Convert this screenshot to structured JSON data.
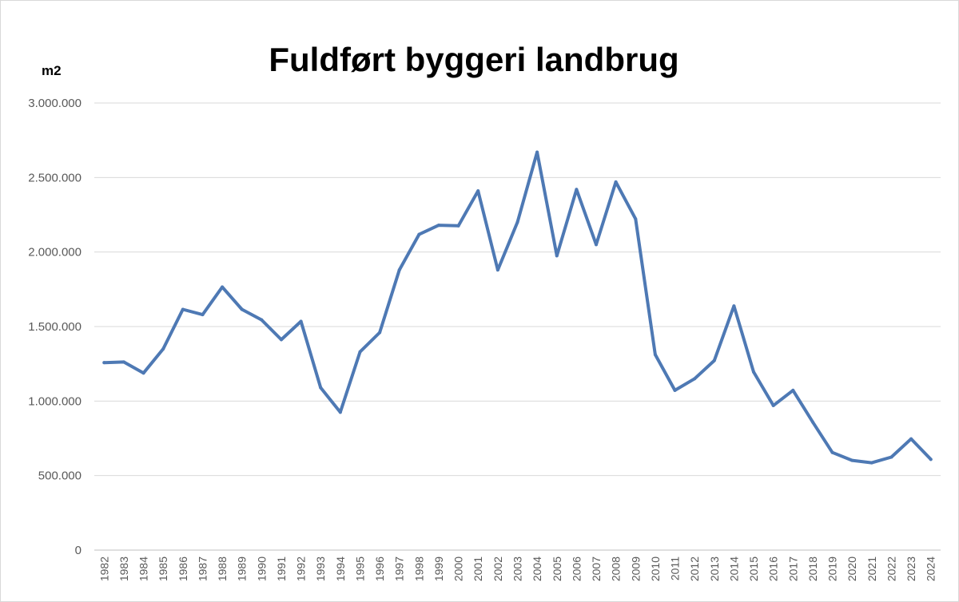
{
  "chart_data": {
    "type": "line",
    "title": "Fuldført byggeri landbrug",
    "ylabel": "m2",
    "xlabel": "",
    "ylim": [
      0,
      3000000
    ],
    "ytick_labels": [
      "0",
      "500.000",
      "1.000.000",
      "1.500.000",
      "2.000.000",
      "2.500.000",
      "3.000.000"
    ],
    "ytick_values": [
      0,
      500000,
      1000000,
      1500000,
      2000000,
      2500000,
      3000000
    ],
    "grid": true,
    "legend": "none",
    "categories": [
      "1982",
      "1983",
      "1984",
      "1985",
      "1986",
      "1987",
      "1988",
      "1989",
      "1990",
      "1991",
      "1992",
      "1993",
      "1994",
      "1995",
      "1996",
      "1997",
      "1998",
      "1999",
      "2000",
      "2001",
      "2002",
      "2003",
      "2004",
      "2005",
      "2006",
      "2007",
      "2008",
      "2009",
      "2010",
      "2011",
      "2012",
      "2013",
      "2014",
      "2015",
      "2016",
      "2017",
      "2018",
      "2019",
      "2020",
      "2021",
      "2022",
      "2023",
      "2024"
    ],
    "series": [
      {
        "color": "#4e79b4",
        "values": [
          1258000,
          1262000,
          1188000,
          1350000,
          1615000,
          1580000,
          1765000,
          1615000,
          1545000,
          1412000,
          1535000,
          1090000,
          925000,
          1330000,
          1460000,
          1880000,
          2118000,
          2180000,
          2176000,
          2410000,
          1880000,
          2200000,
          2670000,
          1975000,
          2420000,
          2050000,
          2470000,
          2222000,
          1312000,
          1072000,
          1150000,
          1272000,
          1638000,
          1195000,
          970000,
          1072000,
          860000,
          655000,
          602000,
          586000,
          624000,
          746000,
          609000
        ]
      }
    ]
  }
}
